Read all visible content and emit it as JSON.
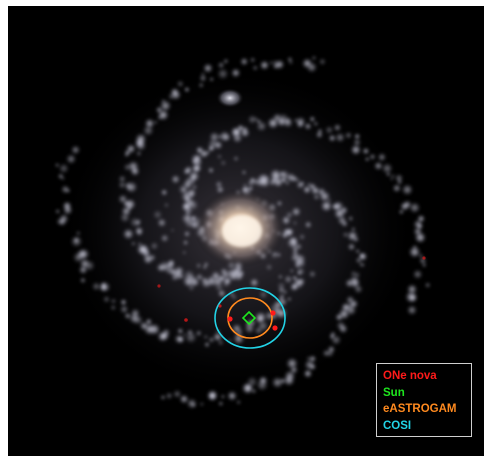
{
  "legend": {
    "items": [
      {
        "label": "ONe nova",
        "color": "#ff1a1a"
      },
      {
        "label": "Sun",
        "color": "#1ee61e"
      },
      {
        "label": "eASTROGAM",
        "color": "#ff8a1f"
      },
      {
        "label": "COSI",
        "color": "#22d3e6"
      }
    ]
  },
  "colors": {
    "background": "#000000",
    "galaxy_core": "#f3dcc4",
    "arm_clumps": "#c9c9d8",
    "nova_marker": "#ff1a1a",
    "sun_marker": "#1ee61e",
    "eastrogam_ring": "#ff8a1f",
    "cosi_ring": "#22d3e6"
  }
}
